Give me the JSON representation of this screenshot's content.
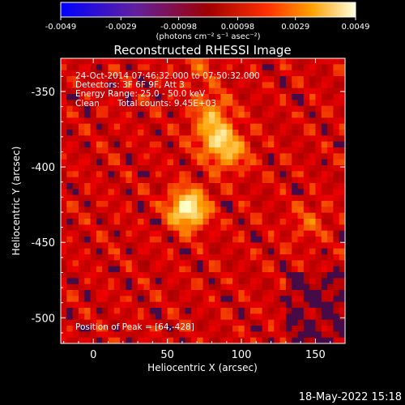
{
  "colorbar": {
    "tick_labels": [
      "-0.0049",
      "-0.0029",
      "-0.00098",
      "0.00098",
      "0.0029",
      "0.0049"
    ],
    "tick_values": [
      -0.0049,
      -0.0029,
      -0.00098,
      0.00098,
      0.0029,
      0.0049
    ],
    "range": [
      -0.0049,
      0.0049
    ],
    "units": "(photons cm⁻² s⁻¹ asec⁻²)"
  },
  "title": "Reconstructed RHESSI Image",
  "annotations": {
    "time": "24-Oct-2014 07:46:32.000 to 07:50:32.000",
    "detectors": "Detectors: 3F 6F 9F, Att 3",
    "energy": "Energy Range: 25.0 - 50.0 keV",
    "clean": "Clean",
    "counts": "Total counts: 9.45E+03",
    "peak": "Position of Peak = [64,-428]"
  },
  "date_stamp": "18-May-2022 15:18",
  "chart_data": {
    "type": "heatmap",
    "title": "Reconstructed RHESSI Image",
    "xlabel": "Heliocentric X (arcsec)",
    "ylabel": "Heliocentric Y (arcsec)",
    "xlim": [
      -22,
      170
    ],
    "ylim": [
      -517,
      -328
    ],
    "x_ticks": [
      0,
      50,
      100,
      150
    ],
    "y_ticks": [
      -350,
      -400,
      -450,
      -500
    ],
    "colormap": "hot",
    "colorbar_range": [
      -0.0049,
      0.0049
    ],
    "peak": [
      64,
      -428
    ],
    "sources": [
      {
        "x": 64,
        "y": -428,
        "intensity": 1.0
      },
      {
        "x": 82,
        "y": -380,
        "intensity": 0.55
      },
      {
        "x": 92,
        "y": -390,
        "intensity": 0.5
      },
      {
        "x": 80,
        "y": -363,
        "intensity": 0.4
      },
      {
        "x": 145,
        "y": -436,
        "intensity": 0.25
      },
      {
        "x": 72,
        "y": -333,
        "intensity": 0.2
      }
    ]
  }
}
